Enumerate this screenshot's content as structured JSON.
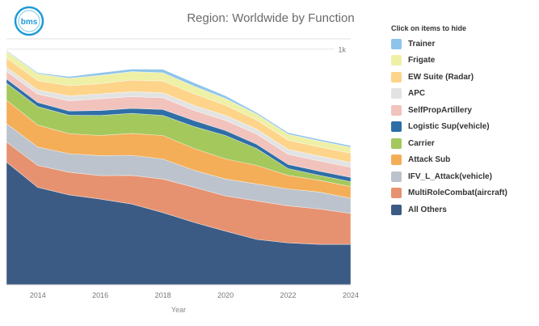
{
  "header": {
    "title": "Region: Worldwide by Function"
  },
  "logo": {
    "icon": "company-logo-icon",
    "text": "bms",
    "color": "#1f9bd7"
  },
  "legend": {
    "title": "Click on items to hide",
    "placement": "right"
  },
  "chart_data": {
    "type": "area",
    "stacked": true,
    "title": "Region: Worldwide by Function",
    "xlabel": "Year",
    "ylabel": "",
    "x": [
      2013,
      2014,
      2015,
      2016,
      2017,
      2018,
      2019,
      2020,
      2021,
      2022,
      2023,
      2024
    ],
    "x_ticks": [
      "2014",
      "2016",
      "2018",
      "2020",
      "2022",
      "2024"
    ],
    "x_tick_values": [
      2014,
      2016,
      2018,
      2020,
      2022,
      2024
    ],
    "ylim": [
      0,
      1.0
    ],
    "y_annotations": [
      {
        "label": "1k",
        "value": 0.905
      }
    ],
    "grid": true,
    "series": [
      {
        "name": "All Others",
        "color": "#3b5b85",
        "values": [
          0.471,
          0.374,
          0.345,
          0.329,
          0.31,
          0.277,
          0.239,
          0.206,
          0.174,
          0.161,
          0.155,
          0.155
        ]
      },
      {
        "name": "MultiRoleCombat(aircraft)",
        "color": "#e69271",
        "values": [
          0.077,
          0.084,
          0.087,
          0.09,
          0.11,
          0.129,
          0.135,
          0.135,
          0.148,
          0.142,
          0.136,
          0.119
        ]
      },
      {
        "name": "IFV_L_Attack(vehicle)",
        "color": "#bcc3cc",
        "values": [
          0.071,
          0.071,
          0.071,
          0.077,
          0.077,
          0.077,
          0.065,
          0.065,
          0.065,
          0.065,
          0.065,
          0.058
        ]
      },
      {
        "name": "Attack Sub",
        "color": "#f4ae58",
        "values": [
          0.09,
          0.084,
          0.077,
          0.077,
          0.084,
          0.09,
          0.084,
          0.077,
          0.071,
          0.052,
          0.045,
          0.045
        ]
      },
      {
        "name": "Carrier",
        "color": "#a4c85c",
        "values": [
          0.065,
          0.071,
          0.071,
          0.077,
          0.077,
          0.077,
          0.084,
          0.09,
          0.065,
          0.026,
          0.019,
          0.019
        ]
      },
      {
        "name": "Logistic Sup(vehicle)",
        "color": "#2f6ea6",
        "values": [
          0.016,
          0.016,
          0.016,
          0.019,
          0.019,
          0.023,
          0.023,
          0.019,
          0.016,
          0.016,
          0.016,
          0.016
        ]
      },
      {
        "name": "SelfPropArtillery",
        "color": "#f2c2bd",
        "values": [
          0.029,
          0.032,
          0.039,
          0.045,
          0.045,
          0.045,
          0.039,
          0.039,
          0.039,
          0.039,
          0.039,
          0.039
        ]
      },
      {
        "name": "APC",
        "color": "#e3e3e3",
        "values": [
          0.016,
          0.016,
          0.019,
          0.019,
          0.019,
          0.019,
          0.019,
          0.019,
          0.019,
          0.019,
          0.019,
          0.019
        ]
      },
      {
        "name": "EW Suite (Radar)",
        "color": "#fdd48a",
        "values": [
          0.036,
          0.036,
          0.039,
          0.039,
          0.045,
          0.045,
          0.045,
          0.039,
          0.035,
          0.035,
          0.035,
          0.035
        ]
      },
      {
        "name": "Frigate",
        "color": "#eef0a6",
        "values": [
          0.026,
          0.026,
          0.029,
          0.032,
          0.032,
          0.032,
          0.029,
          0.026,
          0.023,
          0.023,
          0.023,
          0.023
        ]
      },
      {
        "name": "Trainer",
        "color": "#8fc4ea",
        "values": [
          0.003,
          0.004,
          0.006,
          0.01,
          0.01,
          0.013,
          0.013,
          0.01,
          0.006,
          0.006,
          0.006,
          0.006
        ]
      }
    ]
  }
}
